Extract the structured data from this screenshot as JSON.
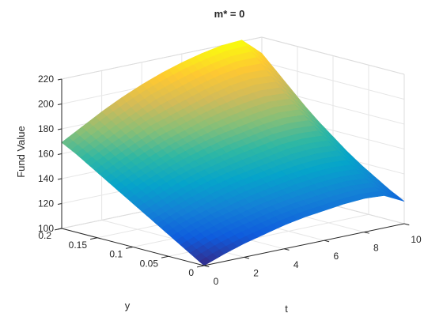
{
  "chart_data": {
    "type": "surface",
    "title": "m* = 0",
    "xlabel": "t",
    "ylabel": "y",
    "zlabel": "Fund Value",
    "xlim": [
      0,
      10
    ],
    "ylim": [
      0,
      0.2
    ],
    "zlim": [
      100,
      220
    ],
    "xticks": [
      "0",
      "2",
      "4",
      "6",
      "8",
      "10"
    ],
    "yticks": [
      "0",
      "0.05",
      "0.1",
      "0.15",
      "0.2"
    ],
    "zticks": [
      "100",
      "120",
      "140",
      "160",
      "180",
      "200",
      "220"
    ],
    "grid": true,
    "colormap": "parula",
    "colormap_colors": [
      "#352a87",
      "#0f5cdd",
      "#1481d6",
      "#06a4ca",
      "#2eb7a4",
      "#87bf77",
      "#d1bb59",
      "#fec832",
      "#f9fb0e"
    ],
    "x": [
      0,
      1,
      2,
      3,
      4,
      5,
      6,
      7,
      8,
      9,
      10
    ],
    "y": [
      0,
      0.02,
      0.04,
      0.06,
      0.08,
      0.1,
      0.12,
      0.14,
      0.16,
      0.18,
      0.2
    ],
    "z": [
      [
        100,
        106,
        111,
        115,
        119,
        122,
        124,
        126,
        127,
        126,
        118
      ],
      [
        107,
        113,
        118,
        122,
        126,
        129,
        131,
        133,
        134,
        133,
        124
      ],
      [
        114,
        120,
        125,
        129,
        133,
        136,
        139,
        141,
        142,
        141,
        131
      ],
      [
        121,
        127,
        132,
        137,
        141,
        144,
        147,
        149,
        150,
        149,
        138
      ],
      [
        128,
        134,
        140,
        145,
        149,
        152,
        155,
        158,
        159,
        158,
        146
      ],
      [
        135,
        142,
        148,
        153,
        157,
        161,
        164,
        167,
        168,
        167,
        155
      ],
      [
        142,
        149,
        155,
        161,
        166,
        170,
        173,
        176,
        178,
        177,
        164
      ],
      [
        149,
        156,
        163,
        169,
        174,
        179,
        183,
        186,
        188,
        187,
        174
      ],
      [
        156,
        164,
        171,
        178,
        183,
        188,
        193,
        197,
        199,
        198,
        185
      ],
      [
        163,
        171,
        179,
        186,
        193,
        198,
        203,
        207,
        210,
        210,
        196
      ],
      [
        169,
        178,
        187,
        195,
        202,
        208,
        213,
        217,
        220,
        221,
        207
      ]
    ]
  }
}
